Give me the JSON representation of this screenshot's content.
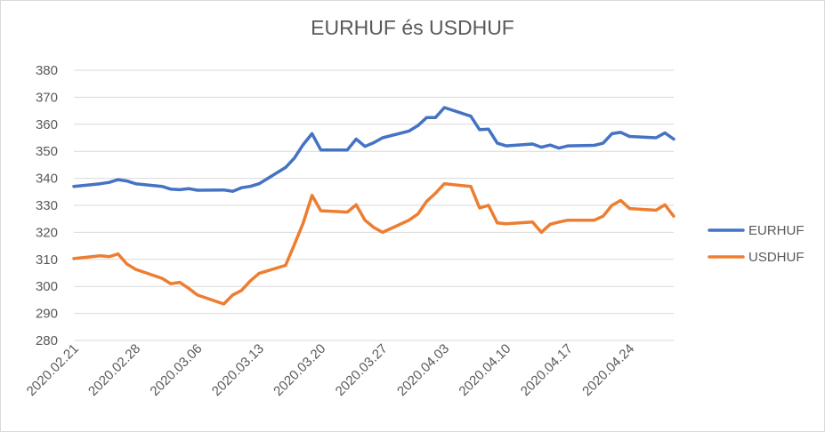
{
  "chart_data": {
    "type": "line",
    "title": "EURHUF és USDHUF",
    "xlabel": "",
    "ylabel": "",
    "ylim": [
      280,
      380
    ],
    "yticks": [
      280,
      290,
      300,
      310,
      320,
      330,
      340,
      350,
      360,
      370,
      380
    ],
    "grid": true,
    "legend_position": "right",
    "x_tick_labels": [
      "2020.02.21",
      "2020.02.28",
      "2020.03.06",
      "2020.03.13",
      "2020.03.20",
      "2020.03.27",
      "2020.04.03",
      "2020.04.10",
      "2020.04.17",
      "2020.04.24"
    ],
    "x": [
      "2020.02.21",
      "2020.02.24",
      "2020.02.25",
      "2020.02.26",
      "2020.02.27",
      "2020.02.28",
      "2020.03.02",
      "2020.03.03",
      "2020.03.04",
      "2020.03.05",
      "2020.03.06",
      "2020.03.09",
      "2020.03.10",
      "2020.03.11",
      "2020.03.12",
      "2020.03.13",
      "2020.03.16",
      "2020.03.17",
      "2020.03.18",
      "2020.03.19",
      "2020.03.20",
      "2020.03.23",
      "2020.03.24",
      "2020.03.25",
      "2020.03.26",
      "2020.03.27",
      "2020.03.30",
      "2020.03.31",
      "2020.04.01",
      "2020.04.02",
      "2020.04.03",
      "2020.04.06",
      "2020.04.07",
      "2020.04.08",
      "2020.04.09",
      "2020.04.10",
      "2020.04.13",
      "2020.04.14",
      "2020.04.15",
      "2020.04.16",
      "2020.04.17",
      "2020.04.20",
      "2020.04.21",
      "2020.04.22",
      "2020.04.23",
      "2020.04.24",
      "2020.04.27",
      "2020.04.28",
      "2020.04.29"
    ],
    "series": [
      {
        "name": "EURHUF",
        "color": "#4472c4",
        "values": [
          337,
          338,
          338.5,
          339.5,
          339,
          338,
          337,
          336,
          335.8,
          336.2,
          335.6,
          335.7,
          335.2,
          336.5,
          337,
          338,
          344,
          347.5,
          352.5,
          356.5,
          350.5,
          350.5,
          354.5,
          351.8,
          353.2,
          355,
          357.5,
          359.5,
          362.5,
          362.5,
          366.2,
          363,
          358,
          358.2,
          353,
          352,
          352.7,
          351.5,
          352.3,
          351.2,
          352,
          352.2,
          353,
          356.5,
          357,
          355.5,
          355,
          356.8,
          354.5
        ]
      },
      {
        "name": "USDHUF",
        "color": "#ed7d31",
        "values": [
          310.3,
          311.3,
          311,
          312,
          308.3,
          306.3,
          303,
          301,
          301.5,
          299.3,
          296.8,
          293.5,
          296.8,
          298.5,
          302,
          304.8,
          307.8,
          315.5,
          323.5,
          333.7,
          328,
          327.5,
          330.2,
          324.5,
          321.8,
          320,
          324.5,
          326.8,
          331.5,
          334.5,
          338,
          337,
          329,
          330,
          323.5,
          323.2,
          323.8,
          320,
          323,
          323.8,
          324.5,
          324.5,
          326,
          330,
          331.8,
          328.8,
          328.2,
          330.2,
          326
        ]
      }
    ]
  }
}
